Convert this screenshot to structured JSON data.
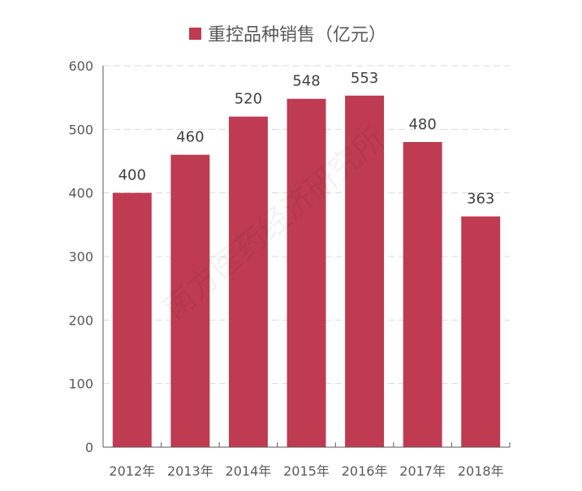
{
  "chart_data": {
    "type": "bar",
    "categories": [
      "2012年",
      "2013年",
      "2014年",
      "2015年",
      "2016年",
      "2017年",
      "2018年"
    ],
    "series": [
      {
        "name": "重控品种销售（亿元）",
        "values": [
          400,
          460,
          520,
          548,
          553,
          480,
          363
        ],
        "color": "#be3b51"
      }
    ],
    "ylim": [
      0,
      600
    ],
    "yticks": [
      0,
      100,
      200,
      300,
      400,
      500,
      600
    ],
    "grid": true,
    "legend": "top",
    "data_labels": true
  },
  "watermark": "南方医药经济研究所"
}
